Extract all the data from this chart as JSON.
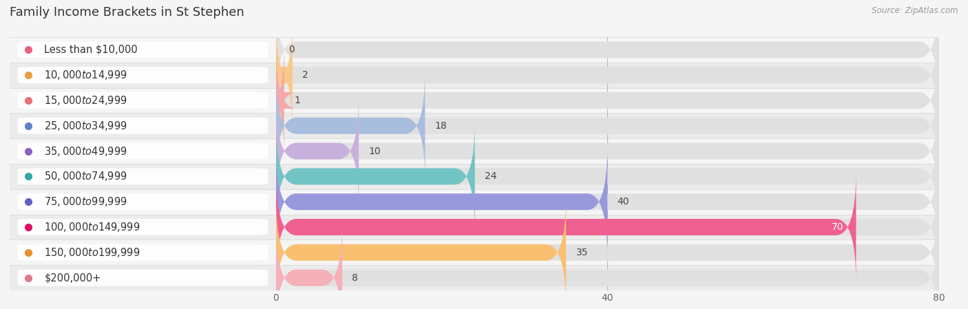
{
  "title": "Family Income Brackets in St Stephen",
  "source": "Source: ZipAtlas.com",
  "categories": [
    "Less than $10,000",
    "$10,000 to $14,999",
    "$15,000 to $24,999",
    "$25,000 to $34,999",
    "$35,000 to $49,999",
    "$50,000 to $74,999",
    "$75,000 to $99,999",
    "$100,000 to $149,999",
    "$150,000 to $199,999",
    "$200,000+"
  ],
  "values": [
    0,
    2,
    1,
    18,
    10,
    24,
    40,
    70,
    35,
    8
  ],
  "bar_colors": [
    "#f5a8b8",
    "#f9c98a",
    "#f5a8a8",
    "#a8bede",
    "#c8b0dc",
    "#72c4c4",
    "#9898dc",
    "#f06090",
    "#f9c070",
    "#f5b0b8"
  ],
  "dot_colors": [
    "#e8607a",
    "#e8a040",
    "#e87070",
    "#6080c8",
    "#9060c0",
    "#30a8a8",
    "#6060c8",
    "#e01060",
    "#e89030",
    "#e07888"
  ],
  "row_colors": [
    "#ffffff",
    "#f0f0f0"
  ],
  "xlim": [
    0,
    80
  ],
  "xticks": [
    0,
    40,
    80
  ],
  "background_color": "#f5f5f5",
  "separator_color": "#d8d8d8",
  "title_fontsize": 13,
  "label_fontsize": 10.5,
  "value_fontsize": 10
}
